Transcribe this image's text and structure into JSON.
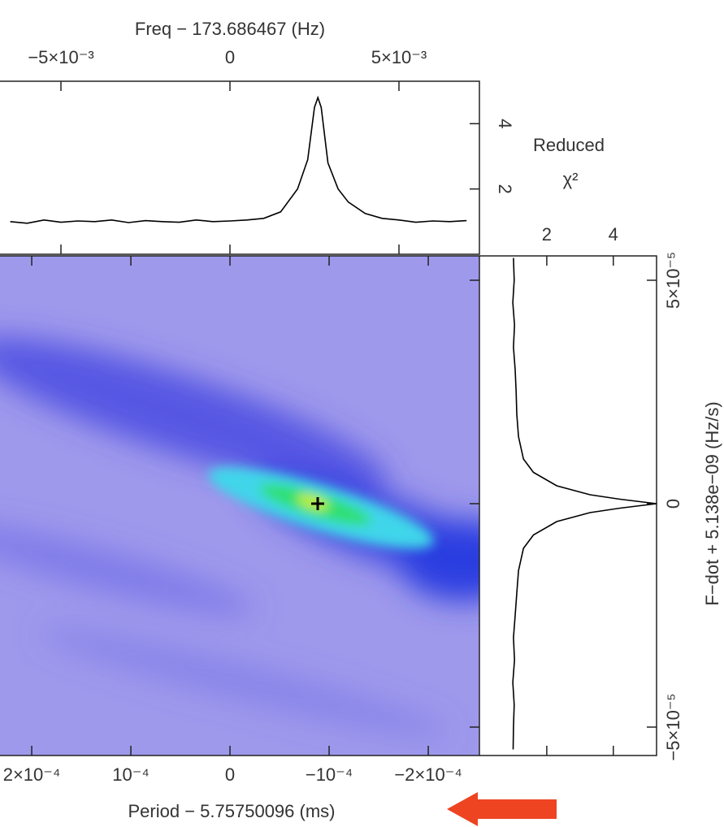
{
  "chart_data": [
    {
      "type": "line",
      "xlabel": "Freq − 173.686467 (Hz)",
      "ylabel": [
        "Reduced",
        "χ²"
      ],
      "color": "#000000",
      "xlim": [
        -0.006803,
        0.00738
      ],
      "xticks": [
        {
          "value": -0.005,
          "label": "−5×10⁻³"
        },
        0,
        {
          "value": 0.005,
          "label": "5×10⁻³"
        }
      ],
      "ylim": [
        0,
        5.3
      ],
      "yticks": [
        2,
        4
      ],
      "x": [
        -0.0065,
        -0.006,
        -0.0055,
        -0.005,
        -0.0045,
        -0.004,
        -0.0035,
        -0.003,
        -0.0025,
        -0.002,
        -0.0015,
        -0.001,
        -0.0005,
        0,
        0.0005,
        0.001,
        0.0015,
        0.002,
        0.0023,
        0.0025,
        0.0026,
        0.0027,
        0.0029,
        0.0032,
        0.0035,
        0.004,
        0.0045,
        0.005,
        0.0055,
        0.006,
        0.0065,
        0.007
      ],
      "values": [
        1.0,
        0.95,
        1.05,
        0.98,
        1.02,
        1.0,
        1.05,
        0.97,
        1.03,
        1.0,
        0.98,
        1.05,
        1.0,
        1.02,
        1.05,
        1.1,
        1.3,
        2.0,
        2.9,
        4.5,
        4.8,
        4.5,
        2.8,
        2.0,
        1.6,
        1.25,
        1.1,
        1.05,
        0.98,
        1.02,
        1.0,
        1.03
      ]
    },
    {
      "type": "heatmap",
      "xlabel": "Period − 5.75750096 (ms)",
      "ylabel": "F−dot + 5.138e−09 (Hz/s)",
      "xlim": [
        0.000232,
        -0.0002516
      ],
      "xticks": [
        {
          "value": 0.0002,
          "label": "2×10⁻⁴"
        },
        {
          "value": 0.0001,
          "label": "10⁻⁴"
        },
        0,
        {
          "value": -0.0001,
          "label": "−10⁻⁴"
        },
        {
          "value": -0.0002,
          "label": "−2×10⁻⁴"
        }
      ],
      "ylim": [
        -5.636e-05,
        5.545e-05
      ],
      "yticks": [
        {
          "value": -5e-05,
          "label": "−5×10⁻⁵"
        },
        0,
        {
          "value": 5e-05,
          "label": "5×10⁻⁵"
        }
      ]
    },
    {
      "type": "line",
      "orientation": "vertical",
      "color": "#000000",
      "xlim": [
        0,
        5.3
      ],
      "xticks": [
        2,
        4
      ],
      "ylim": [
        -5.636e-05,
        5.545e-05
      ],
      "x": [
        5.5e-05,
        5e-05,
        4.5e-05,
        4e-05,
        3.5e-05,
        3e-05,
        2.5e-05,
        2e-05,
        1.5e-05,
        1e-05,
        7e-06,
        4e-06,
        2e-06,
        1e-06,
        0,
        -1e-06,
        -2e-06,
        -4e-06,
        -7e-06,
        -1e-05,
        -1.5e-05,
        -2e-05,
        -2.5e-05,
        -3e-05,
        -3.5e-05,
        -4e-05,
        -4.5e-05,
        -5e-05,
        -5.5e-05
      ],
      "values": [
        1.0,
        1.02,
        0.98,
        1.03,
        1.0,
        1.05,
        1.08,
        1.1,
        1.15,
        1.3,
        1.6,
        2.3,
        3.3,
        4.2,
        5.3,
        4.2,
        3.3,
        2.3,
        1.6,
        1.3,
        1.15,
        1.1,
        1.05,
        1.0,
        1.03,
        0.98,
        1.02,
        1.0,
        0.99
      ]
    }
  ]
}
